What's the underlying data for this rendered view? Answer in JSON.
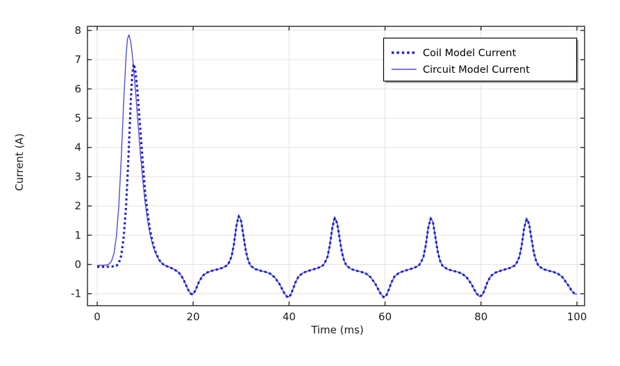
{
  "chart_data": {
    "type": "line",
    "title": "",
    "xlabel": "Time (ms)",
    "ylabel": "Current (A)",
    "x_ticks": [
      0,
      20,
      40,
      60,
      80,
      100
    ],
    "y_ticks": [
      -1,
      0,
      1,
      2,
      3,
      4,
      5,
      6,
      7,
      8
    ],
    "xlim": [
      -2,
      101.6
    ],
    "ylim": [
      -1.41,
      8.14
    ],
    "grid": "on",
    "grid_color": "#e2e2e2",
    "frame_color": "#262626",
    "background_color": "#ffffff",
    "legend": {
      "position": "top-right",
      "border_color": "#000000",
      "fill_color": "#ffffff",
      "shadow_color": "#9a9a9a"
    },
    "series": [
      {
        "name": "Coil Model Current",
        "style": "dotted",
        "color": "#1b1bd0",
        "points": [
          [
            0,
            -0.08
          ],
          [
            1,
            -0.08
          ],
          [
            2,
            -0.08
          ],
          [
            3,
            -0.07
          ],
          [
            4,
            -0.05
          ],
          [
            4.5,
            0.04
          ],
          [
            5,
            0.3
          ],
          [
            5.5,
            0.9
          ],
          [
            6,
            1.95
          ],
          [
            6.5,
            3.6
          ],
          [
            7,
            5.6
          ],
          [
            7.3,
            6.5
          ],
          [
            7.6,
            6.85
          ],
          [
            7.9,
            6.7
          ],
          [
            8.3,
            6.1
          ],
          [
            9,
            4.6
          ],
          [
            9.5,
            3.5
          ],
          [
            10,
            2.45
          ],
          [
            10.5,
            1.75
          ],
          [
            11,
            1.2
          ],
          [
            11.5,
            0.8
          ],
          [
            12,
            0.5
          ],
          [
            12.5,
            0.3
          ],
          [
            13,
            0.14
          ],
          [
            13.5,
            0.04
          ],
          [
            14,
            -0.03
          ],
          [
            15,
            -0.09
          ],
          [
            16,
            -0.16
          ],
          [
            17,
            -0.28
          ],
          [
            17.5,
            -0.38
          ],
          [
            18,
            -0.52
          ],
          [
            18.5,
            -0.7
          ],
          [
            19,
            -0.88
          ],
          [
            19.4,
            -0.99
          ],
          [
            19.8,
            -1.02
          ],
          [
            20.2,
            -0.97
          ],
          [
            20.7,
            -0.8
          ],
          [
            21.2,
            -0.6
          ],
          [
            22,
            -0.38
          ],
          [
            23,
            -0.27
          ],
          [
            24,
            -0.21
          ],
          [
            25,
            -0.17
          ],
          [
            26,
            -0.12
          ],
          [
            27,
            -0.04
          ],
          [
            27.5,
            0.07
          ],
          [
            28,
            0.27
          ],
          [
            28.5,
            0.68
          ],
          [
            29,
            1.3
          ],
          [
            29.5,
            1.64
          ],
          [
            30,
            1.48
          ],
          [
            30.5,
            0.95
          ],
          [
            31,
            0.44
          ],
          [
            31.5,
            0.12
          ],
          [
            32,
            -0.05
          ],
          [
            33,
            -0.16
          ],
          [
            34,
            -0.21
          ],
          [
            35,
            -0.25
          ],
          [
            36,
            -0.31
          ],
          [
            37,
            -0.44
          ],
          [
            38,
            -0.67
          ],
          [
            39,
            -0.98
          ],
          [
            39.7,
            -1.13
          ],
          [
            40.3,
            -1.05
          ],
          [
            40.8,
            -0.85
          ],
          [
            41.3,
            -0.62
          ],
          [
            42,
            -0.4
          ],
          [
            43,
            -0.28
          ],
          [
            44,
            -0.22
          ],
          [
            45,
            -0.17
          ],
          [
            46,
            -0.12
          ],
          [
            47,
            -0.04
          ],
          [
            47.5,
            0.07
          ],
          [
            48,
            0.26
          ],
          [
            48.5,
            0.66
          ],
          [
            49,
            1.25
          ],
          [
            49.5,
            1.57
          ],
          [
            50,
            1.42
          ],
          [
            50.5,
            0.92
          ],
          [
            51,
            0.42
          ],
          [
            51.5,
            0.11
          ],
          [
            52,
            -0.05
          ],
          [
            53,
            -0.16
          ],
          [
            54,
            -0.21
          ],
          [
            55,
            -0.25
          ],
          [
            56,
            -0.31
          ],
          [
            57,
            -0.44
          ],
          [
            58,
            -0.67
          ],
          [
            59,
            -0.98
          ],
          [
            59.7,
            -1.12
          ],
          [
            60.3,
            -1.05
          ],
          [
            60.8,
            -0.85
          ],
          [
            61.3,
            -0.62
          ],
          [
            62,
            -0.4
          ],
          [
            63,
            -0.28
          ],
          [
            64,
            -0.22
          ],
          [
            65,
            -0.17
          ],
          [
            66,
            -0.12
          ],
          [
            67,
            -0.04
          ],
          [
            67.5,
            0.07
          ],
          [
            68,
            0.26
          ],
          [
            68.5,
            0.66
          ],
          [
            69,
            1.25
          ],
          [
            69.5,
            1.56
          ],
          [
            70,
            1.42
          ],
          [
            70.5,
            0.92
          ],
          [
            71,
            0.42
          ],
          [
            71.5,
            0.11
          ],
          [
            72,
            -0.05
          ],
          [
            73,
            -0.16
          ],
          [
            74,
            -0.21
          ],
          [
            75,
            -0.25
          ],
          [
            76,
            -0.31
          ],
          [
            77,
            -0.44
          ],
          [
            78,
            -0.67
          ],
          [
            79,
            -0.98
          ],
          [
            79.7,
            -1.1
          ],
          [
            80.3,
            -1.04
          ],
          [
            80.8,
            -0.85
          ],
          [
            81.3,
            -0.62
          ],
          [
            82,
            -0.4
          ],
          [
            83,
            -0.28
          ],
          [
            84,
            -0.22
          ],
          [
            85,
            -0.17
          ],
          [
            86,
            -0.12
          ],
          [
            87,
            -0.04
          ],
          [
            87.5,
            0.07
          ],
          [
            88,
            0.26
          ],
          [
            88.5,
            0.66
          ],
          [
            89,
            1.25
          ],
          [
            89.5,
            1.54
          ],
          [
            90,
            1.4
          ],
          [
            90.5,
            0.9
          ],
          [
            91,
            0.41
          ],
          [
            91.5,
            0.11
          ],
          [
            92,
            -0.05
          ],
          [
            93,
            -0.16
          ],
          [
            94,
            -0.21
          ],
          [
            95,
            -0.25
          ],
          [
            96,
            -0.31
          ],
          [
            97,
            -0.44
          ],
          [
            98,
            -0.67
          ],
          [
            99,
            -0.92
          ],
          [
            99.5,
            -1.0
          ],
          [
            100,
            -1.02
          ]
        ]
      },
      {
        "name": "Circuit Model Current",
        "style": "solid",
        "color": "#4c4cdb",
        "points": [
          [
            0,
            -0.03
          ],
          [
            1,
            -0.03
          ],
          [
            2,
            -0.02
          ],
          [
            2.5,
            0.02
          ],
          [
            3,
            0.12
          ],
          [
            3.5,
            0.38
          ],
          [
            4,
            0.95
          ],
          [
            4.5,
            2.0
          ],
          [
            5,
            3.6
          ],
          [
            5.5,
            5.5
          ],
          [
            6,
            7.1
          ],
          [
            6.3,
            7.7
          ],
          [
            6.6,
            7.85
          ],
          [
            7,
            7.6
          ],
          [
            7.5,
            6.9
          ],
          [
            8,
            5.9
          ],
          [
            8.5,
            4.85
          ],
          [
            9,
            3.8
          ],
          [
            9.5,
            2.9
          ],
          [
            10,
            2.1
          ],
          [
            10.5,
            1.5
          ],
          [
            11,
            1.05
          ],
          [
            11.5,
            0.7
          ],
          [
            12,
            0.45
          ],
          [
            12.5,
            0.27
          ],
          [
            13,
            0.13
          ],
          [
            13.5,
            0.04
          ],
          [
            14,
            -0.02
          ],
          [
            15,
            -0.09
          ],
          [
            16,
            -0.16
          ],
          [
            17,
            -0.28
          ],
          [
            17.5,
            -0.38
          ],
          [
            18,
            -0.52
          ],
          [
            18.5,
            -0.7
          ],
          [
            19,
            -0.88
          ],
          [
            19.4,
            -0.99
          ],
          [
            19.8,
            -1.02
          ],
          [
            20.2,
            -0.97
          ],
          [
            20.7,
            -0.8
          ],
          [
            21.2,
            -0.6
          ],
          [
            22,
            -0.38
          ],
          [
            23,
            -0.27
          ],
          [
            24,
            -0.21
          ],
          [
            25,
            -0.17
          ],
          [
            26,
            -0.12
          ],
          [
            27,
            -0.04
          ],
          [
            27.5,
            0.07
          ],
          [
            28,
            0.27
          ],
          [
            28.5,
            0.68
          ],
          [
            29,
            1.3
          ],
          [
            29.5,
            1.7
          ],
          [
            30,
            1.5
          ],
          [
            30.5,
            0.95
          ],
          [
            31,
            0.44
          ],
          [
            31.5,
            0.12
          ],
          [
            32,
            -0.05
          ],
          [
            33,
            -0.16
          ],
          [
            34,
            -0.21
          ],
          [
            35,
            -0.25
          ],
          [
            36,
            -0.31
          ],
          [
            37,
            -0.44
          ],
          [
            38,
            -0.67
          ],
          [
            39,
            -0.98
          ],
          [
            39.7,
            -1.13
          ],
          [
            40.3,
            -1.05
          ],
          [
            40.8,
            -0.85
          ],
          [
            41.3,
            -0.62
          ],
          [
            42,
            -0.4
          ],
          [
            43,
            -0.28
          ],
          [
            44,
            -0.22
          ],
          [
            45,
            -0.17
          ],
          [
            46,
            -0.12
          ],
          [
            47,
            -0.04
          ],
          [
            47.5,
            0.07
          ],
          [
            48,
            0.26
          ],
          [
            48.5,
            0.66
          ],
          [
            49,
            1.25
          ],
          [
            49.5,
            1.63
          ],
          [
            50,
            1.44
          ],
          [
            50.5,
            0.92
          ],
          [
            51,
            0.42
          ],
          [
            51.5,
            0.11
          ],
          [
            52,
            -0.05
          ],
          [
            53,
            -0.16
          ],
          [
            54,
            -0.21
          ],
          [
            55,
            -0.25
          ],
          [
            56,
            -0.31
          ],
          [
            57,
            -0.44
          ],
          [
            58,
            -0.67
          ],
          [
            59,
            -0.98
          ],
          [
            59.7,
            -1.12
          ],
          [
            60.3,
            -1.05
          ],
          [
            60.8,
            -0.85
          ],
          [
            61.3,
            -0.62
          ],
          [
            62,
            -0.4
          ],
          [
            63,
            -0.28
          ],
          [
            64,
            -0.22
          ],
          [
            65,
            -0.17
          ],
          [
            66,
            -0.12
          ],
          [
            67,
            -0.04
          ],
          [
            67.5,
            0.07
          ],
          [
            68,
            0.26
          ],
          [
            68.5,
            0.66
          ],
          [
            69,
            1.25
          ],
          [
            69.5,
            1.62
          ],
          [
            70,
            1.44
          ],
          [
            70.5,
            0.92
          ],
          [
            71,
            0.42
          ],
          [
            71.5,
            0.11
          ],
          [
            72,
            -0.05
          ],
          [
            73,
            -0.16
          ],
          [
            74,
            -0.21
          ],
          [
            75,
            -0.25
          ],
          [
            76,
            -0.31
          ],
          [
            77,
            -0.44
          ],
          [
            78,
            -0.67
          ],
          [
            79,
            -0.98
          ],
          [
            79.7,
            -1.1
          ],
          [
            80.3,
            -1.04
          ],
          [
            80.8,
            -0.85
          ],
          [
            81.3,
            -0.62
          ],
          [
            82,
            -0.4
          ],
          [
            83,
            -0.28
          ],
          [
            84,
            -0.22
          ],
          [
            85,
            -0.17
          ],
          [
            86,
            -0.12
          ],
          [
            87,
            -0.04
          ],
          [
            87.5,
            0.07
          ],
          [
            88,
            0.26
          ],
          [
            88.5,
            0.66
          ],
          [
            89,
            1.25
          ],
          [
            89.5,
            1.6
          ],
          [
            90,
            1.42
          ],
          [
            90.5,
            0.9
          ],
          [
            91,
            0.41
          ],
          [
            91.5,
            0.11
          ],
          [
            92,
            -0.05
          ],
          [
            93,
            -0.16
          ],
          [
            94,
            -0.21
          ],
          [
            95,
            -0.25
          ],
          [
            96,
            -0.31
          ],
          [
            97,
            -0.44
          ],
          [
            98,
            -0.67
          ],
          [
            99,
            -0.92
          ],
          [
            99.5,
            -1.0
          ],
          [
            100,
            -1.02
          ]
        ]
      }
    ]
  }
}
